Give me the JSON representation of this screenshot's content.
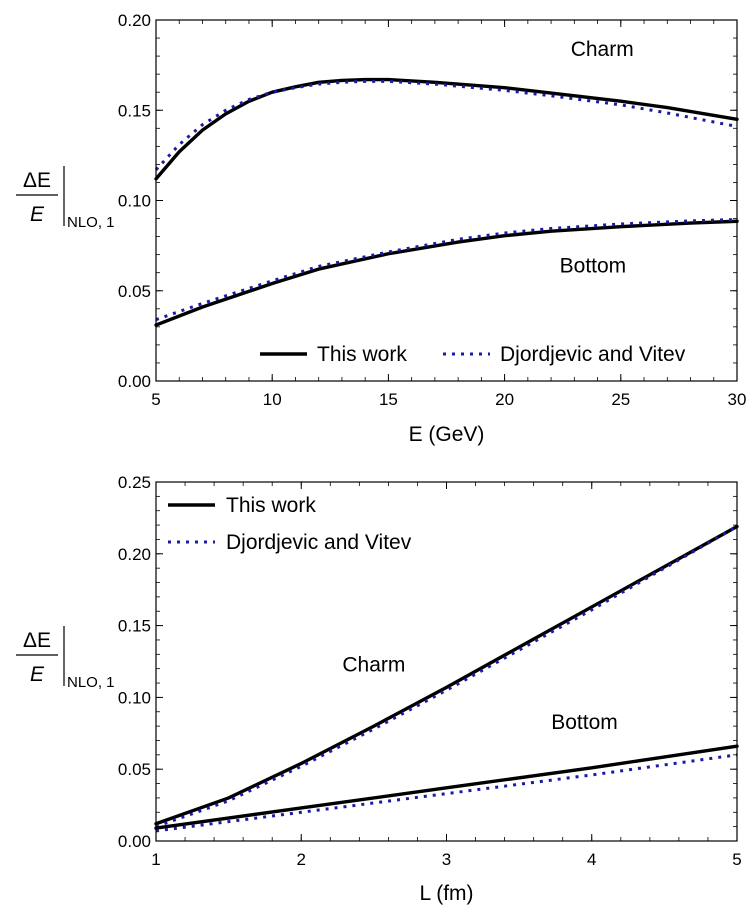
{
  "chart_data": [
    {
      "type": "line",
      "xlabel": "E (GeV)",
      "ylabel": {
        "numerator": "ΔE",
        "denominator": "E",
        "subscript": "NLO, 1"
      },
      "xlim": [
        5,
        30
      ],
      "ylim": [
        0,
        0.2
      ],
      "xticks": [
        5,
        10,
        15,
        20,
        25,
        30
      ],
      "xtick_labels": [
        "5",
        "10",
        "15",
        "20",
        "25",
        "30"
      ],
      "yticks": [
        0,
        0.05,
        0.1,
        0.15,
        0.2
      ],
      "ytick_labels": [
        "0.00",
        "0.05",
        "0.10",
        "0.15",
        "0.20"
      ],
      "grid": false,
      "legend": {
        "placement": "bottom-right",
        "layout": "row",
        "entries": [
          "This work",
          "Djordjevic and Vitev"
        ]
      },
      "series": [
        {
          "name": "This work",
          "style": "solid",
          "color": "#000000",
          "x": [
            5,
            6,
            7,
            8,
            9,
            10,
            11,
            12,
            13,
            14,
            15,
            17,
            20,
            22,
            25,
            27,
            30
          ],
          "y": [
            0.112,
            0.127,
            0.139,
            0.148,
            0.155,
            0.16,
            0.163,
            0.1655,
            0.1665,
            0.167,
            0.167,
            0.1655,
            0.1625,
            0.1595,
            0.155,
            0.1515,
            0.145
          ]
        },
        {
          "name": "Djordjevic and Vitev",
          "style": "dotted",
          "color": "#1a1aa6",
          "x": [
            5,
            6,
            7,
            8,
            9,
            10,
            11,
            12,
            13,
            14,
            15,
            17,
            20,
            22,
            25,
            27,
            30
          ],
          "y": [
            0.117,
            0.131,
            0.142,
            0.15,
            0.156,
            0.16,
            0.1625,
            0.1645,
            0.1655,
            0.166,
            0.166,
            0.1645,
            0.161,
            0.158,
            0.153,
            0.1485,
            0.141
          ]
        },
        {
          "name": "This work",
          "style": "solid",
          "color": "#000000",
          "x": [
            5,
            7,
            10,
            12,
            15,
            18,
            20,
            22,
            25,
            28,
            30
          ],
          "y": [
            0.031,
            0.041,
            0.054,
            0.062,
            0.0705,
            0.077,
            0.0805,
            0.083,
            0.0855,
            0.0875,
            0.0885
          ]
        },
        {
          "name": "Djordjevic and Vitev",
          "style": "dotted",
          "color": "#1a1aa6",
          "x": [
            5,
            7,
            10,
            12,
            15,
            18,
            20,
            22,
            25,
            28,
            30
          ],
          "y": [
            0.034,
            0.043,
            0.0555,
            0.0635,
            0.0715,
            0.0785,
            0.082,
            0.0845,
            0.087,
            0.0887,
            0.0895
          ]
        }
      ],
      "annotations": [
        {
          "text": "Charm",
          "x": 24.2,
          "y": 0.18
        },
        {
          "text": "Bottom",
          "x": 23.8,
          "y": 0.06
        }
      ]
    },
    {
      "type": "line",
      "xlabel": "L (fm)",
      "ylabel": {
        "numerator": "ΔE",
        "denominator": "E",
        "subscript": "NLO, 1"
      },
      "xlim": [
        1,
        5
      ],
      "ylim": [
        0,
        0.25
      ],
      "xticks": [
        1,
        2,
        3,
        4,
        5
      ],
      "xtick_labels": [
        "1",
        "2",
        "3",
        "4",
        "5"
      ],
      "yticks": [
        0,
        0.05,
        0.1,
        0.15,
        0.2,
        0.25
      ],
      "ytick_labels": [
        "0.00",
        "0.05",
        "0.10",
        "0.15",
        "0.20",
        "0.25"
      ],
      "grid": false,
      "legend": {
        "placement": "top-left",
        "layout": "column",
        "entries": [
          "This work",
          "Djordjevic and Vitev"
        ]
      },
      "series": [
        {
          "name": "This work",
          "style": "solid",
          "color": "#000000",
          "x": [
            1,
            1.5,
            2,
            2.5,
            3,
            3.5,
            4,
            4.5,
            5
          ],
          "y": [
            0.012,
            0.03,
            0.054,
            0.08,
            0.107,
            0.135,
            0.163,
            0.191,
            0.219
          ]
        },
        {
          "name": "Djordjevic and Vitev",
          "style": "dotted",
          "color": "#1a1aa6",
          "x": [
            1,
            1.5,
            2,
            2.5,
            3,
            3.5,
            4,
            4.5,
            5
          ],
          "y": [
            0.01,
            0.028,
            0.052,
            0.078,
            0.105,
            0.133,
            0.161,
            0.19,
            0.219
          ]
        },
        {
          "name": "This work",
          "style": "solid",
          "color": "#000000",
          "x": [
            1,
            2,
            3,
            4,
            5
          ],
          "y": [
            0.009,
            0.023,
            0.037,
            0.051,
            0.066
          ]
        },
        {
          "name": "Djordjevic and Vitev",
          "style": "dotted",
          "color": "#1a1aa6",
          "x": [
            1,
            2,
            3,
            4,
            5
          ],
          "y": [
            0.007,
            0.02,
            0.033,
            0.046,
            0.06
          ]
        }
      ],
      "annotations": [
        {
          "text": "Charm",
          "x": 2.5,
          "y": 0.118
        },
        {
          "text": "Bottom",
          "x": 3.95,
          "y": 0.078
        }
      ]
    }
  ]
}
